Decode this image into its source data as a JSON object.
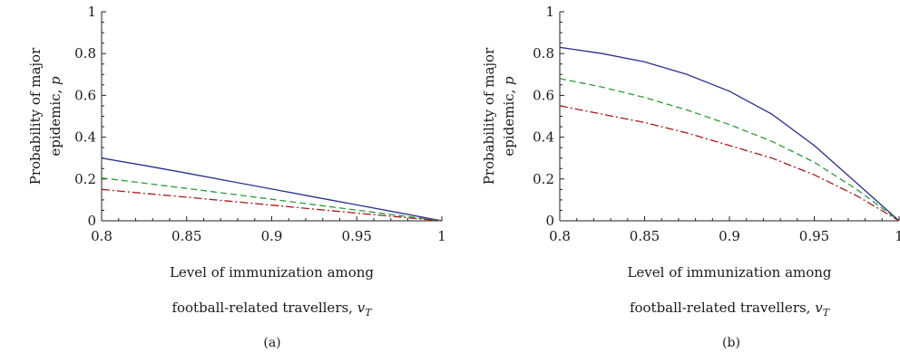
{
  "chart_data": [
    {
      "type": "line",
      "panel_label": "(a)",
      "xlabel_line1": "Level of immunization among",
      "xlabel_line2": "football-related travellers, ",
      "xlabel_symbol": "v",
      "xlabel_subscript": "T",
      "ylabel_line1": "Probability of major",
      "ylabel_line2": "epidemic, ",
      "ylabel_symbol": "p",
      "xlim": [
        0.8,
        1
      ],
      "ylim": [
        0,
        1
      ],
      "xticks": [
        "0.8",
        "0.85",
        "0.9",
        "0.95",
        "1"
      ],
      "yticks": [
        "0",
        "0.2",
        "0.4",
        "0.6",
        "0.8",
        "1"
      ],
      "grid": false,
      "series": [
        {
          "color": "#2b2f8a",
          "dash": "solid",
          "x": [
            0.8,
            0.825,
            0.85,
            0.875,
            0.9,
            0.925,
            0.95,
            0.975,
            1.0
          ],
          "y": [
            0.3,
            0.265,
            0.228,
            0.19,
            0.152,
            0.114,
            0.076,
            0.038,
            0.0
          ]
        },
        {
          "color": "#2e9a3c",
          "dash": "dashed",
          "x": [
            0.8,
            0.825,
            0.85,
            0.875,
            0.9,
            0.925,
            0.95,
            0.975,
            1.0
          ],
          "y": [
            0.205,
            0.18,
            0.155,
            0.129,
            0.103,
            0.077,
            0.051,
            0.025,
            0.0
          ]
        },
        {
          "color": "#a31c1c",
          "dash": "dashdot",
          "x": [
            0.8,
            0.825,
            0.85,
            0.875,
            0.9,
            0.925,
            0.95,
            0.975,
            1.0
          ],
          "y": [
            0.15,
            0.131,
            0.113,
            0.094,
            0.075,
            0.056,
            0.037,
            0.018,
            0.0
          ]
        }
      ]
    },
    {
      "type": "line",
      "panel_label": "(b)",
      "xlabel_line1": "Level of immunization among",
      "xlabel_line2": "football-related travellers, ",
      "xlabel_symbol": "v",
      "xlabel_subscript": "T",
      "ylabel_line1": "Probability of major",
      "ylabel_line2": "epidemic, ",
      "ylabel_symbol": "p",
      "xlim": [
        0.8,
        1
      ],
      "ylim": [
        0,
        1
      ],
      "xticks": [
        "0.8",
        "0.85",
        "0.9",
        "0.95",
        "1"
      ],
      "yticks": [
        "0",
        "0.2",
        "0.4",
        "0.6",
        "0.8",
        "1"
      ],
      "grid": false,
      "series": [
        {
          "color": "#2b2f8a",
          "dash": "solid",
          "x": [
            0.8,
            0.825,
            0.85,
            0.875,
            0.9,
            0.925,
            0.95,
            0.975,
            1.0
          ],
          "y": [
            0.83,
            0.8,
            0.76,
            0.7,
            0.62,
            0.51,
            0.36,
            0.18,
            0.0
          ]
        },
        {
          "color": "#2e9a3c",
          "dash": "dashed",
          "x": [
            0.8,
            0.825,
            0.85,
            0.875,
            0.9,
            0.925,
            0.95,
            0.975,
            1.0
          ],
          "y": [
            0.68,
            0.64,
            0.59,
            0.53,
            0.46,
            0.38,
            0.28,
            0.15,
            0.0
          ]
        },
        {
          "color": "#a31c1c",
          "dash": "dashdot",
          "x": [
            0.8,
            0.825,
            0.85,
            0.875,
            0.9,
            0.925,
            0.95,
            0.975,
            1.0
          ],
          "y": [
            0.55,
            0.51,
            0.47,
            0.42,
            0.36,
            0.3,
            0.22,
            0.12,
            0.0
          ]
        }
      ]
    }
  ]
}
